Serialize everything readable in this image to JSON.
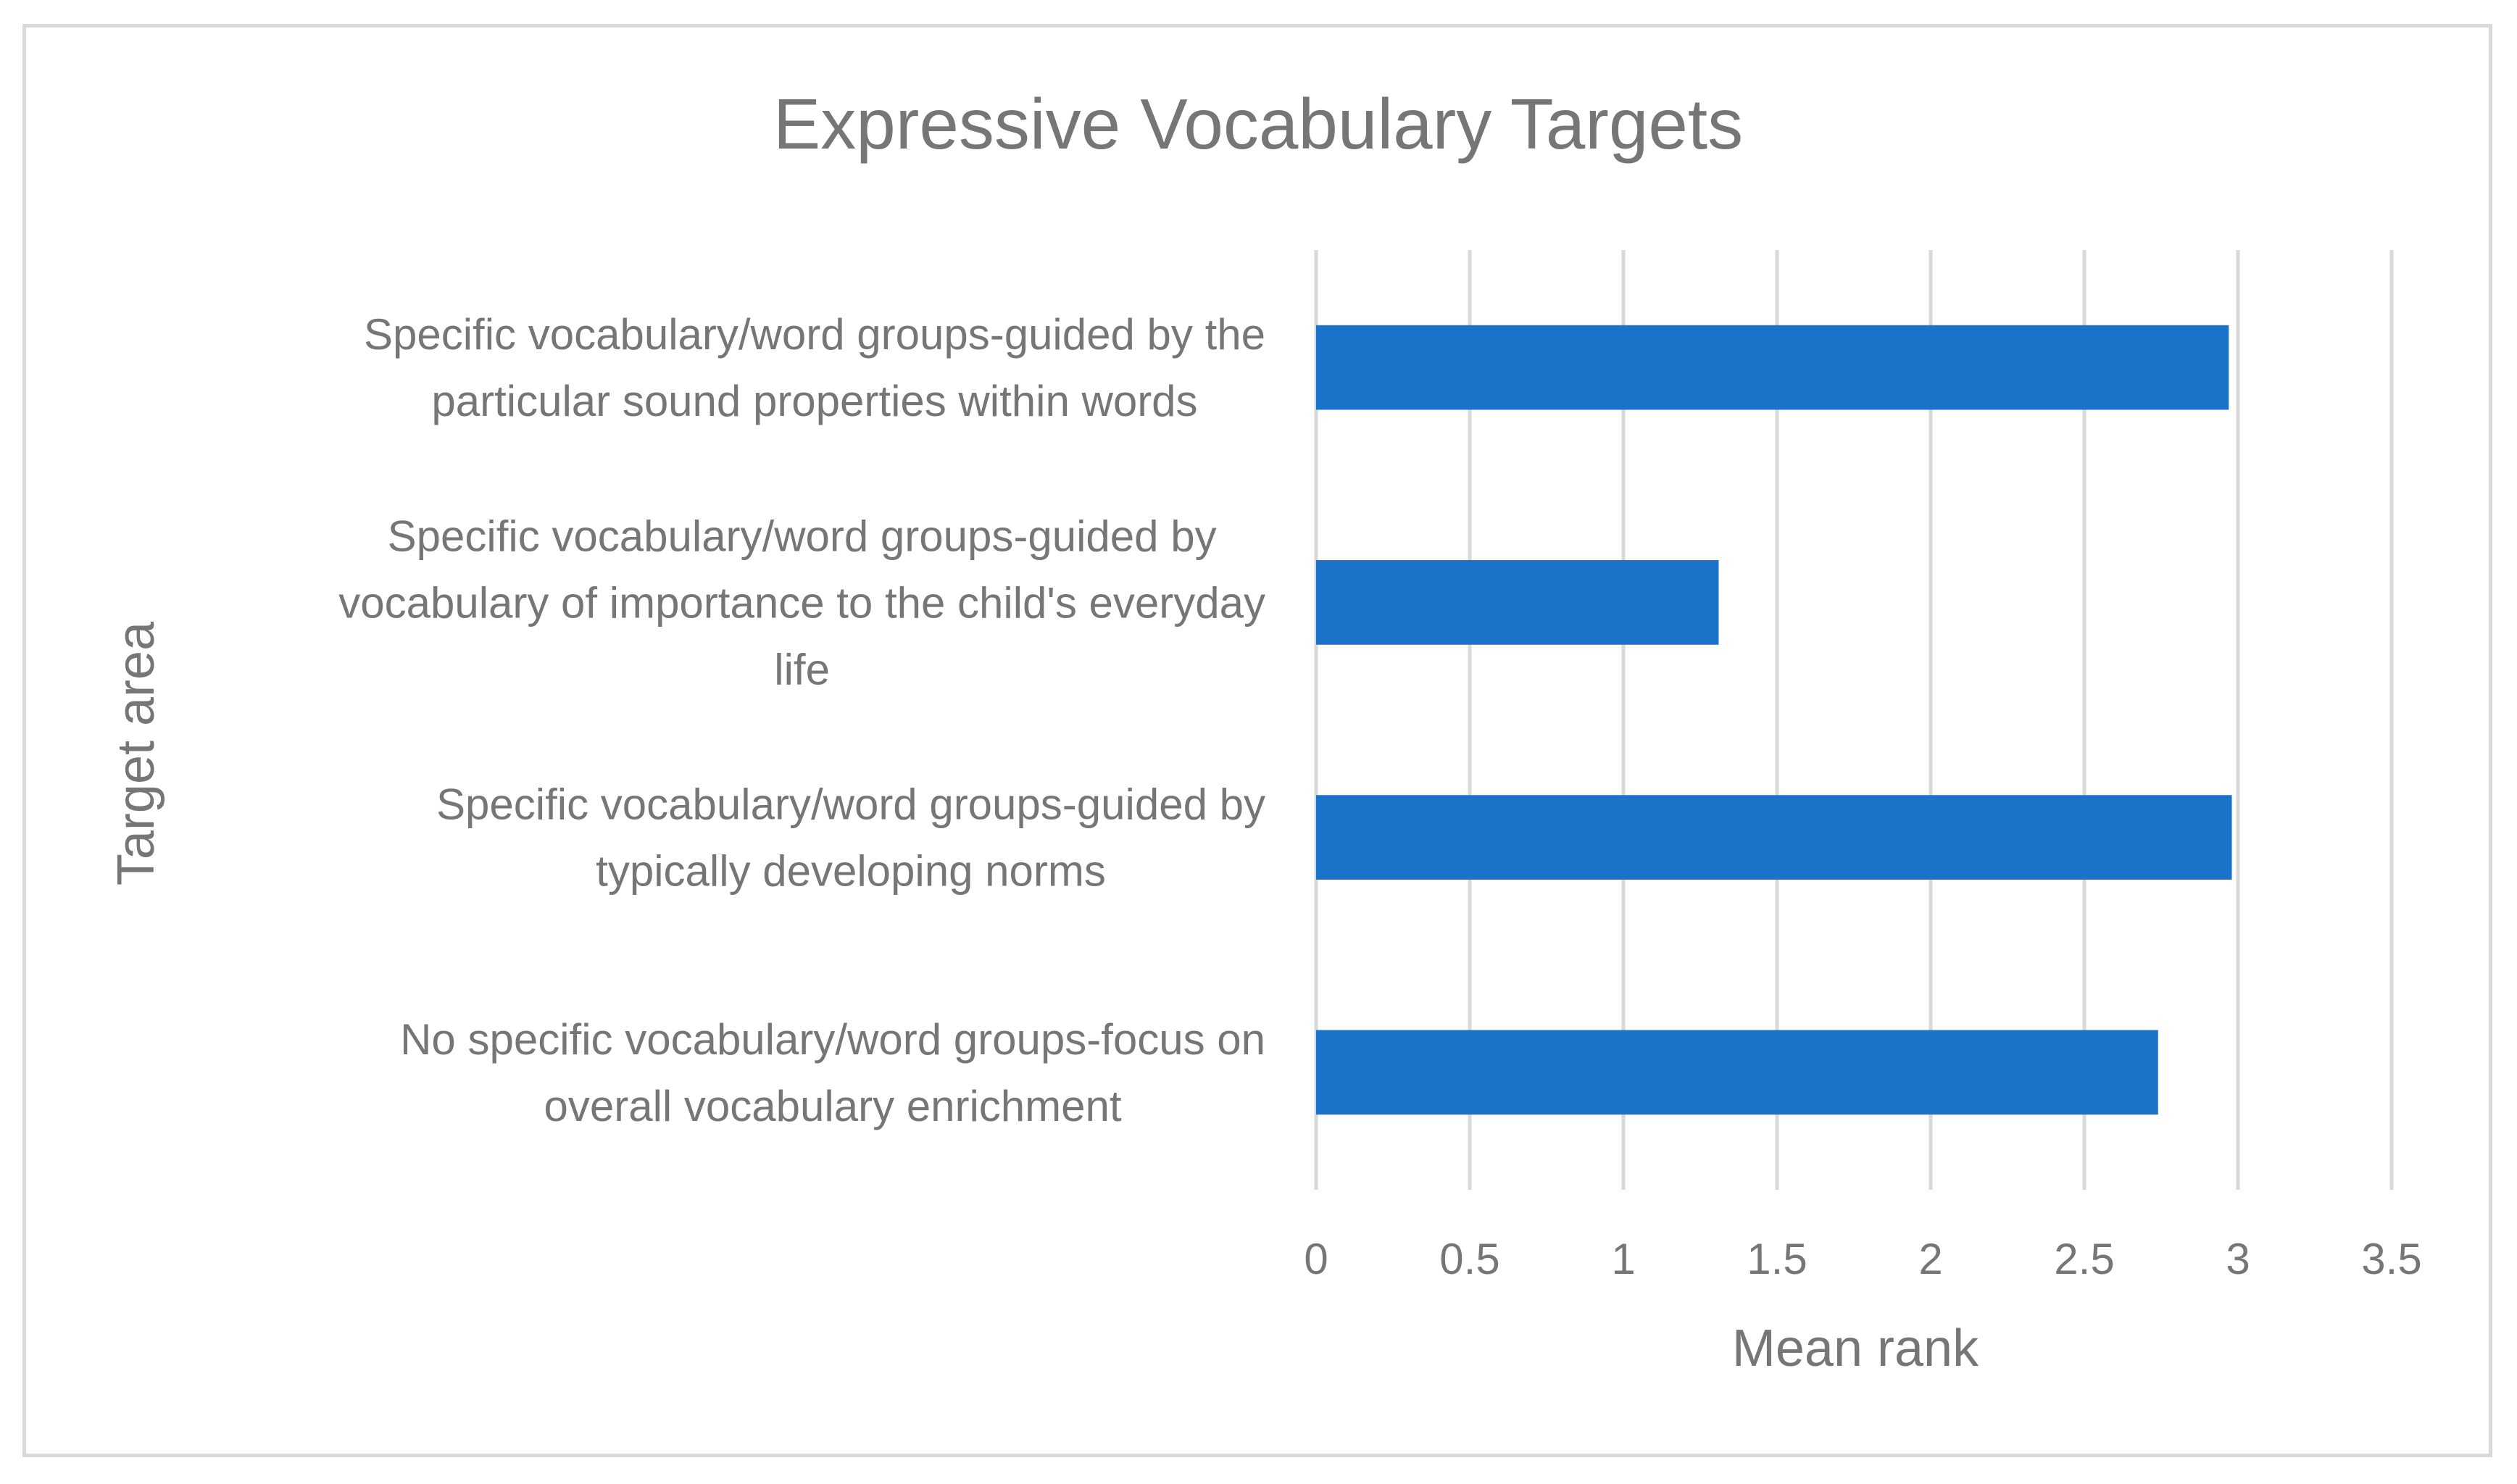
{
  "chart_data": {
    "type": "bar",
    "orientation": "horizontal",
    "title": "Expressive Vocabulary Targets",
    "xlabel": "Mean rank",
    "ylabel": "Target area",
    "xlim": [
      0,
      3.5
    ],
    "xticks": [
      "0",
      "0.5",
      "1",
      "1.5",
      "2",
      "2.5",
      "3",
      "3.5"
    ],
    "grid": "vertical",
    "legend": "none",
    "bar_color": "#1a73c9",
    "categories": [
      "Specific vocabulary/word groups-guided by the particular sound properties within words",
      "Specific vocabulary/word groups-guided by vocabulary of importance to the child's everyday life",
      "Specific vocabulary/word groups-guided by typically developing norms",
      "No specific vocabulary/word groups-focus on overall vocabulary enrichment"
    ],
    "category_lines": [
      [
        "Specific vocabulary/word groups-guided by the",
        "particular sound properties within words"
      ],
      [
        "Specific vocabulary/word groups-guided by",
        "vocabulary of importance to the child's everyday",
        "life"
      ],
      [
        "Specific vocabulary/word groups-guided by",
        "typically developing norms"
      ],
      [
        "No specific vocabulary/word groups-focus on",
        "overall vocabulary enrichment"
      ]
    ],
    "values": [
      2.97,
      1.31,
      2.98,
      2.74
    ]
  }
}
